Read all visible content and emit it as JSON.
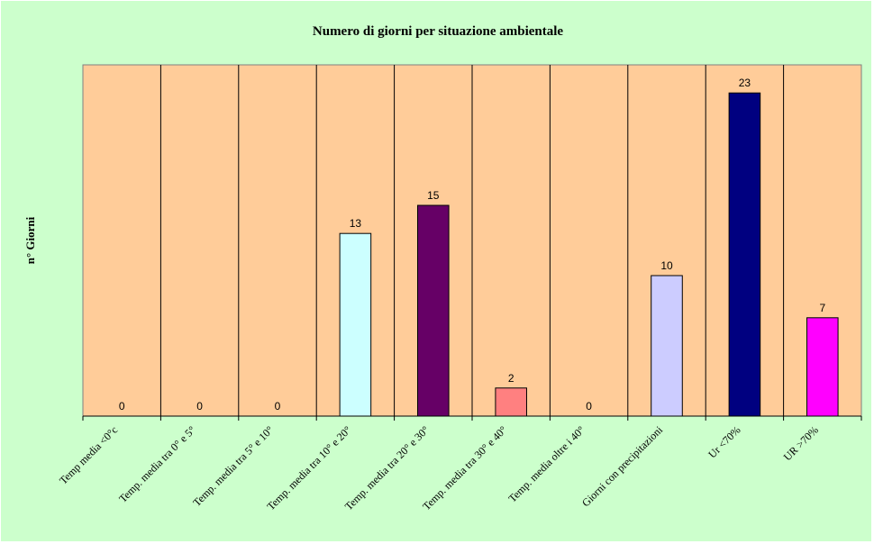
{
  "chart_data": {
    "type": "bar",
    "title": "Numero di giorni per situazione ambientale",
    "xlabel": "",
    "ylabel": "n° Giorni",
    "ylim": [
      0,
      25
    ],
    "grid": false,
    "legend": "none",
    "categories": [
      "Temp media <0°c",
      "Temp. media tra 0° e 5°",
      "Temp. media tra 5° e 10°",
      "Temp. media tra 10° e 20°",
      "Temp. media tra 20° e 30°",
      "Temp. media tra 30° e 40°",
      "Temp. media oltre i 40°",
      "Giorni con precipitazioni",
      "Ur <70%",
      "UR >70%"
    ],
    "values": [
      0,
      0,
      0,
      13,
      15,
      2,
      0,
      10,
      23,
      7
    ],
    "bar_colors": [
      "#ccffff",
      "#ccffff",
      "#ccffff",
      "#ccffff",
      "#660066",
      "#ff8080",
      "#ccffff",
      "#ccccff",
      "#000080",
      "#ff00ff"
    ],
    "plot_background": "#ffcc99",
    "chart_background": "#ccffcc"
  }
}
